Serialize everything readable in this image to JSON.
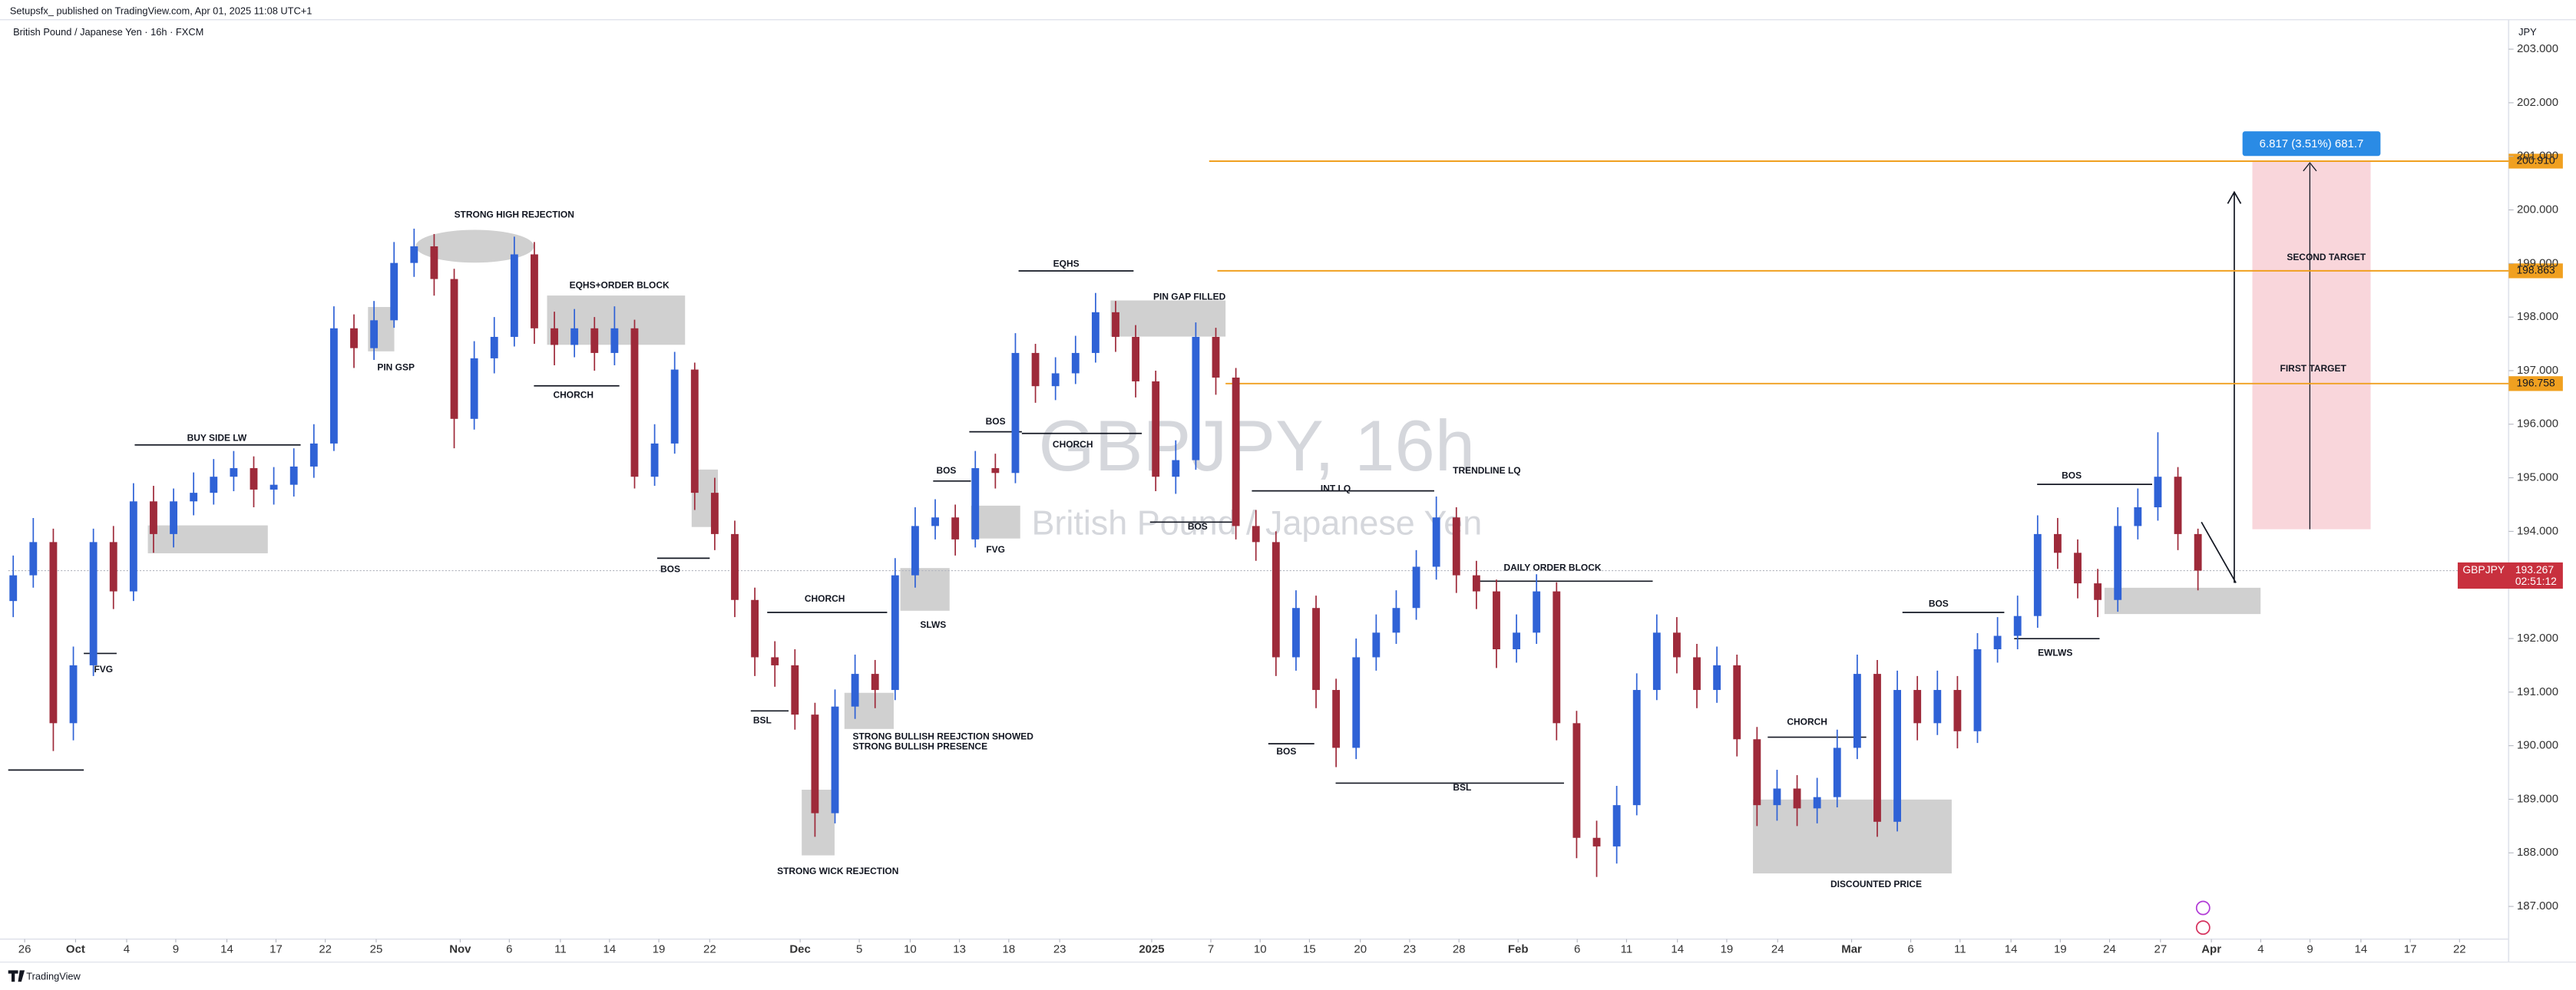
{
  "header": {
    "publisher": "Setupsfx_ published on TradingView.com, Apr 01, 2025 11:08 UTC+1",
    "footer": "TradingView"
  },
  "chart_data": {
    "type": "candlestick",
    "title": "British Pound / Japanese Yen · 16h · FXCM",
    "watermark": "GBPJPY, 16h",
    "watermark_subtitle": "British Pound / Japanese Yen",
    "currency": "JPY",
    "up_color": "#2f62d6",
    "down_color": "#9e2a3a",
    "ohlc": {
      "open": [
        192.7,
        193.18,
        193.8,
        190.42,
        191.5,
        193.8,
        192.88,
        194.56,
        193.95,
        194.56,
        194.72,
        195.02,
        195.18,
        194.78,
        194.87,
        195.21,
        195.64,
        197.79,
        197.42,
        197.94,
        199.01,
        199.32,
        198.71,
        196.1,
        197.23,
        197.63,
        199.17,
        197.79,
        197.48,
        197.79,
        197.33,
        197.79,
        195.02,
        195.64,
        197.02,
        194.72,
        193.95,
        192.72,
        191.65,
        191.5,
        190.58,
        188.74,
        190.73,
        191.34,
        191.04,
        193.18,
        194.1,
        194.26,
        193.85,
        195.18,
        195.09,
        197.33,
        196.71,
        196.95,
        197.33,
        198.09,
        197.63,
        196.8,
        195.02,
        195.33,
        197.63,
        196.87,
        194.1,
        193.8,
        191.65,
        192.57,
        191.04,
        189.96,
        191.65,
        192.11,
        192.57,
        193.34,
        194.26,
        193.18,
        192.88,
        191.8,
        192.11,
        192.88,
        190.42,
        188.28,
        188.12,
        188.89,
        191.04,
        192.11,
        191.65,
        191.04,
        191.5,
        190.12,
        188.89,
        189.2,
        188.83,
        189.04,
        189.96,
        191.34,
        188.58,
        191.04,
        190.42,
        191.04,
        190.27,
        191.8,
        192.05,
        192.42,
        193.95,
        193.6,
        193.03,
        192.72,
        194.1,
        194.45,
        195.02,
        193.95
      ],
      "high": [
        193.55,
        194.25,
        194.05,
        191.85,
        194.05,
        194.1,
        194.9,
        194.85,
        194.8,
        195.1,
        195.35,
        195.5,
        195.4,
        195.2,
        195.55,
        196.0,
        198.2,
        198.05,
        198.3,
        199.4,
        199.65,
        199.55,
        198.9,
        197.55,
        198.0,
        199.5,
        199.4,
        198.1,
        198.15,
        198.0,
        198.2,
        197.95,
        196.0,
        197.35,
        197.15,
        195.0,
        194.2,
        192.95,
        191.95,
        191.8,
        190.8,
        191.05,
        191.7,
        191.6,
        193.5,
        194.45,
        194.6,
        194.5,
        195.5,
        195.45,
        197.7,
        197.5,
        197.25,
        197.65,
        198.45,
        198.3,
        197.85,
        197.0,
        195.7,
        197.9,
        197.8,
        197.05,
        194.4,
        194.0,
        192.9,
        192.8,
        191.25,
        192.0,
        192.45,
        192.9,
        193.65,
        194.65,
        194.45,
        193.45,
        193.1,
        192.45,
        193.2,
        193.05,
        190.65,
        188.6,
        189.25,
        191.35,
        192.45,
        192.4,
        191.9,
        191.85,
        191.7,
        190.35,
        189.55,
        189.45,
        189.4,
        190.3,
        191.7,
        191.6,
        191.4,
        191.3,
        191.4,
        191.3,
        192.1,
        192.4,
        192.8,
        194.3,
        194.25,
        193.85,
        193.3,
        194.45,
        194.8,
        195.85,
        195.2,
        194.05
      ],
      "low": [
        192.4,
        192.95,
        189.9,
        190.1,
        191.3,
        192.55,
        192.7,
        193.6,
        193.7,
        194.3,
        194.5,
        194.75,
        194.45,
        194.5,
        194.65,
        195.0,
        195.5,
        197.05,
        197.2,
        197.8,
        198.75,
        198.4,
        195.55,
        195.9,
        196.95,
        197.45,
        197.5,
        197.1,
        197.25,
        197.0,
        197.1,
        194.8,
        194.85,
        195.45,
        194.4,
        193.65,
        192.4,
        191.3,
        191.1,
        190.3,
        188.3,
        188.55,
        190.5,
        190.7,
        190.85,
        192.95,
        193.85,
        193.55,
        193.7,
        194.8,
        194.9,
        196.4,
        196.45,
        196.75,
        197.15,
        197.35,
        196.5,
        194.75,
        194.7,
        195.15,
        196.55,
        193.85,
        193.45,
        191.3,
        191.4,
        190.7,
        189.6,
        189.75,
        191.4,
        191.9,
        192.35,
        193.1,
        192.85,
        192.55,
        191.45,
        191.55,
        191.9,
        190.1,
        187.9,
        187.55,
        187.8,
        188.7,
        190.85,
        191.35,
        190.7,
        190.8,
        189.8,
        188.5,
        188.6,
        188.5,
        188.55,
        188.85,
        189.75,
        188.3,
        188.4,
        190.1,
        190.2,
        189.95,
        190.05,
        191.55,
        191.8,
        192.2,
        193.3,
        192.75,
        192.4,
        192.5,
        193.85,
        194.2,
        193.65,
        192.9
      ],
      "close": [
        193.18,
        193.8,
        190.42,
        191.5,
        193.8,
        192.88,
        194.56,
        193.95,
        194.56,
        194.72,
        195.02,
        195.18,
        194.78,
        194.87,
        195.21,
        195.64,
        197.79,
        197.42,
        197.94,
        199.01,
        199.32,
        198.71,
        196.1,
        197.23,
        197.63,
        199.17,
        197.79,
        197.48,
        197.79,
        197.33,
        197.79,
        195.02,
        195.64,
        197.02,
        194.72,
        193.95,
        192.72,
        191.65,
        191.5,
        190.58,
        188.74,
        190.73,
        191.34,
        191.04,
        193.18,
        194.1,
        194.26,
        193.85,
        195.18,
        195.09,
        197.33,
        196.71,
        196.95,
        197.33,
        198.09,
        197.63,
        196.8,
        195.02,
        195.33,
        197.63,
        196.87,
        194.1,
        193.8,
        191.65,
        192.57,
        191.04,
        189.96,
        191.65,
        192.11,
        192.57,
        193.34,
        194.26,
        193.18,
        192.88,
        191.8,
        192.11,
        192.88,
        190.42,
        188.28,
        188.12,
        188.89,
        191.04,
        192.11,
        191.65,
        191.04,
        191.5,
        190.12,
        188.89,
        189.2,
        188.83,
        189.04,
        189.96,
        191.34,
        188.58,
        191.04,
        190.42,
        191.04,
        190.27,
        191.8,
        192.05,
        192.42,
        193.95,
        193.6,
        193.03,
        192.72,
        194.1,
        194.45,
        195.02,
        193.95,
        193.267
      ]
    },
    "xlim": [
      -0.25,
      124.5
    ],
    "xticks": [
      {
        "value": 0.57,
        "label": "26"
      },
      {
        "value": 3.11,
        "label": "Oct"
      },
      {
        "value": 5.66,
        "label": "4"
      },
      {
        "value": 8.11,
        "label": "9"
      },
      {
        "value": 10.66,
        "label": "14"
      },
      {
        "value": 13.11,
        "label": "17"
      },
      {
        "value": 15.57,
        "label": "22"
      },
      {
        "value": 18.11,
        "label": "25"
      },
      {
        "value": 22.3,
        "label": "Nov"
      },
      {
        "value": 24.75,
        "label": "6"
      },
      {
        "value": 27.3,
        "label": "11"
      },
      {
        "value": 29.75,
        "label": "14"
      },
      {
        "value": 32.21,
        "label": "19"
      },
      {
        "value": 34.75,
        "label": "22"
      },
      {
        "value": 39.26,
        "label": "Dec"
      },
      {
        "value": 42.21,
        "label": "5"
      },
      {
        "value": 44.75,
        "label": "10"
      },
      {
        "value": 47.21,
        "label": "13"
      },
      {
        "value": 49.67,
        "label": "18"
      },
      {
        "value": 52.21,
        "label": "23"
      },
      {
        "value": 56.8,
        "label": "2025"
      },
      {
        "value": 59.75,
        "label": "7"
      },
      {
        "value": 62.21,
        "label": "10"
      },
      {
        "value": 64.67,
        "label": "15"
      },
      {
        "value": 67.21,
        "label": "20"
      },
      {
        "value": 69.67,
        "label": "23"
      },
      {
        "value": 72.13,
        "label": "28"
      },
      {
        "value": 75.08,
        "label": "Feb"
      },
      {
        "value": 78.03,
        "label": "6"
      },
      {
        "value": 80.49,
        "label": "11"
      },
      {
        "value": 83.03,
        "label": "14"
      },
      {
        "value": 85.49,
        "label": "19"
      },
      {
        "value": 88.03,
        "label": "24"
      },
      {
        "value": 91.72,
        "label": "Mar"
      },
      {
        "value": 94.67,
        "label": "6"
      },
      {
        "value": 97.13,
        "label": "11"
      },
      {
        "value": 99.67,
        "label": "14"
      },
      {
        "value": 102.13,
        "label": "19"
      },
      {
        "value": 104.59,
        "label": "24"
      },
      {
        "value": 107.13,
        "label": "27"
      },
      {
        "value": 109.67,
        "label": "Apr"
      },
      {
        "value": 112.13,
        "label": "4"
      },
      {
        "value": 114.59,
        "label": "9"
      },
      {
        "value": 117.13,
        "label": "14"
      },
      {
        "value": 119.59,
        "label": "17"
      },
      {
        "value": 122.05,
        "label": "22"
      }
    ],
    "ylim": [
      186.39,
      203.55
    ],
    "yticks": [
      {
        "value": 187,
        "label": "187.000"
      },
      {
        "value": 188,
        "label": "188.000"
      },
      {
        "value": 189,
        "label": "189.000"
      },
      {
        "value": 190,
        "label": "190.000"
      },
      {
        "value": 191,
        "label": "191.000"
      },
      {
        "value": 192,
        "label": "192.000"
      },
      {
        "value": 193,
        "label": "193.000"
      },
      {
        "value": 194,
        "label": "194.000"
      },
      {
        "value": 195,
        "label": "195.000"
      },
      {
        "value": 196,
        "label": "196.000"
      },
      {
        "value": 197,
        "label": "197.000"
      },
      {
        "value": 198,
        "label": "198.000"
      },
      {
        "value": 199,
        "label": "199.000"
      },
      {
        "value": 200,
        "label": "200.000"
      },
      {
        "value": 201,
        "label": "201.000"
      },
      {
        "value": 202,
        "label": "202.000"
      },
      {
        "value": 203,
        "label": "203.000"
      }
    ],
    "levels": [
      {
        "value": 200.91,
        "label": "200.910"
      },
      198.863,
      196.758
    ],
    "level_color": "#f0a020",
    "last_price": {
      "symbol": "GBPJPY",
      "value": 193.267,
      "countdown": "02:51:12",
      "color": "#c8303e"
    },
    "position": {
      "entry": 194.04,
      "label": "6.817 (3.51%) 681.7",
      "targets": [
        "FIRST TARGET",
        "SECOND TARGET"
      ]
    },
    "annotations": [
      "STRONG HIGH REJECTION",
      "EQHS+ORDER BLOCK",
      "PIN GSP",
      "CHORCH",
      "BUY SIDE LW",
      "BOS",
      "FVG",
      "CHORCH",
      "SLWS",
      "BSL",
      "STRONG BULLISH REEJCTION SHOWED",
      "STRONG BULLISH PRESENCE",
      "STRONG WICK REJECTION",
      "BOS",
      "BOS",
      "FVG",
      "CHORCH",
      "EQHS",
      "PIN GAP FILLED",
      "BOS",
      "INT LQ",
      "TRENDLINE LQ",
      "DAILY ORDER BLOCK",
      "BOS",
      "BSL",
      "CHORCH",
      "DISCOUNTED PRICE",
      "BOS",
      "EWLWS",
      "BOS"
    ]
  }
}
